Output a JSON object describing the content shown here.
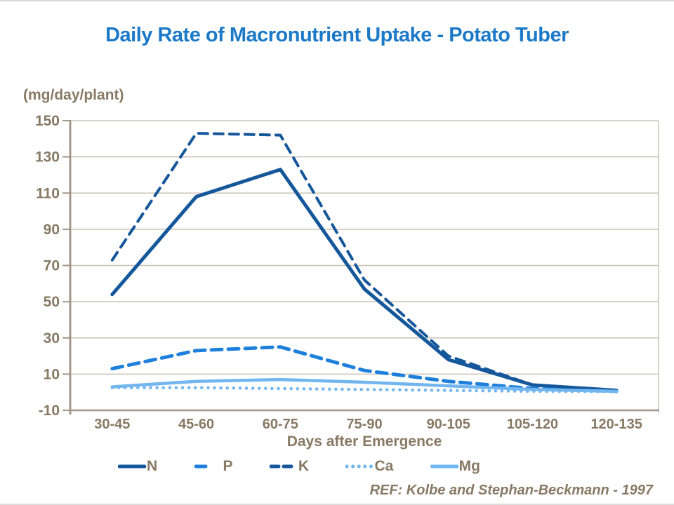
{
  "page": {
    "ref": "REF: Kolbe and Stephan-Beckmann - 1997"
  },
  "colors": {
    "title_blue": "#1B79C8",
    "axis_text_brown": "#877964",
    "gridline": "#CBC1B5",
    "axis_line": "#A3978A",
    "navy": "#15579B",
    "medium_blue": "#1E80DC",
    "light_blue": "#72B6F0"
  },
  "chart_data": {
    "type": "line",
    "title": "Daily Rate of Macronutrient Uptake - Potato Tuber",
    "unit_label": "(mg/day/plant)",
    "xlabel": "Days after Emergence",
    "ylabel": "(mg/day/plant)",
    "ylim": [
      -10,
      150
    ],
    "yticks": [
      150,
      130,
      110,
      90,
      70,
      50,
      30,
      10,
      -10
    ],
    "grid": "horizontal",
    "legend_position": "bottom",
    "categories": [
      "30-45",
      "45-60",
      "60-75",
      "75-90",
      "90-105",
      "105-120",
      "120-135"
    ],
    "series": [
      {
        "name": "N",
        "style": "solid",
        "color": "#15579B",
        "width": 5,
        "values": [
          54,
          108,
          123,
          57,
          18,
          4,
          1
        ]
      },
      {
        "name": "P",
        "style": "dashed",
        "color": "#1E80DC",
        "width": 5,
        "values": [
          13,
          23,
          25,
          12,
          6,
          2,
          0.5
        ]
      },
      {
        "name": "K",
        "style": "dashed",
        "color": "#15579B",
        "width": 4,
        "values": [
          73,
          143,
          142,
          62,
          20,
          4,
          1
        ]
      },
      {
        "name": "Ca",
        "style": "dotted",
        "color": "#72B6F0",
        "width": 4.5,
        "values": [
          2.5,
          2.5,
          2,
          1.5,
          1,
          0.5,
          0.3
        ]
      },
      {
        "name": "Mg",
        "style": "solid",
        "color": "#72B6F0",
        "width": 4.5,
        "values": [
          3,
          6,
          7,
          5.5,
          3.5,
          1.5,
          0.5
        ]
      }
    ]
  }
}
